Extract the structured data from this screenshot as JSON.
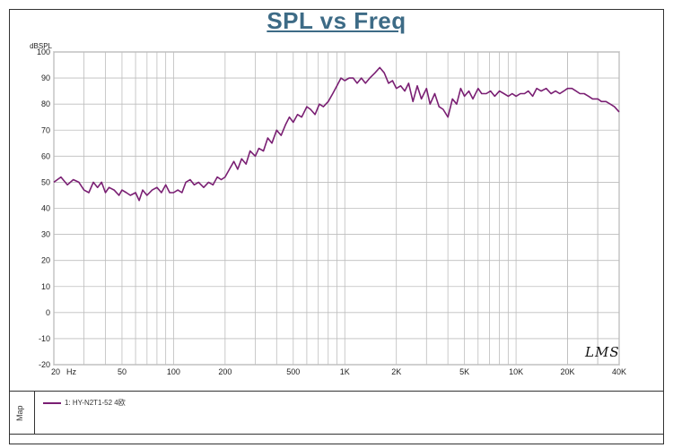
{
  "chart_data": {
    "type": "line",
    "title": "SPL vs Freq",
    "ylabel": "dBSPL",
    "xlabel": "",
    "xscale": "log",
    "xlim": [
      20,
      40000
    ],
    "ylim": [
      -20,
      100
    ],
    "grid": true,
    "y_ticks": [
      "100",
      "90",
      "80",
      "70",
      "60",
      "50",
      "40",
      "30",
      "20",
      "10",
      "0",
      "-10",
      "-20"
    ],
    "x_ticks": [
      {
        "v": 20,
        "label": "20"
      },
      {
        "v": 50,
        "label": "50"
      },
      {
        "v": 100,
        "label": "100"
      },
      {
        "v": 200,
        "label": "200"
      },
      {
        "v": 500,
        "label": "500"
      },
      {
        "v": 1000,
        "label": "1K"
      },
      {
        "v": 2000,
        "label": "2K"
      },
      {
        "v": 5000,
        "label": "5K"
      },
      {
        "v": 10000,
        "label": "10K"
      },
      {
        "v": 20000,
        "label": "20K"
      },
      {
        "v": 40000,
        "label": "40K"
      }
    ],
    "x_unit": "Hz",
    "series": [
      {
        "name": "1: HY-N2T1-52 4欧",
        "color": "#7a1f73",
        "x": [
          20,
          22,
          24,
          26,
          28,
          30,
          32,
          34,
          36,
          38,
          40,
          42,
          45,
          48,
          50,
          53,
          56,
          60,
          63,
          66,
          70,
          75,
          80,
          85,
          90,
          95,
          100,
          106,
          112,
          118,
          125,
          132,
          140,
          150,
          160,
          170,
          180,
          190,
          200,
          212,
          225,
          237,
          250,
          265,
          280,
          300,
          315,
          335,
          355,
          375,
          400,
          425,
          450,
          475,
          500,
          530,
          560,
          600,
          630,
          670,
          710,
          750,
          800,
          850,
          900,
          950,
          1000,
          1060,
          1120,
          1180,
          1250,
          1320,
          1400,
          1500,
          1600,
          1700,
          1800,
          1900,
          2000,
          2120,
          2240,
          2360,
          2500,
          2650,
          2800,
          3000,
          3150,
          3350,
          3550,
          3750,
          4000,
          4250,
          4500,
          4750,
          5000,
          5300,
          5600,
          6000,
          6300,
          6700,
          7100,
          7500,
          8000,
          8500,
          9000,
          9500,
          10000,
          10600,
          11200,
          11800,
          12500,
          13200,
          14000,
          15000,
          16000,
          17000,
          18000,
          19000,
          20000,
          21200,
          22400,
          23600,
          25000,
          26500,
          28000,
          30000,
          31500,
          33500,
          35500,
          37500,
          40000
        ],
        "y": [
          50,
          52,
          49,
          51,
          50,
          47,
          46,
          50,
          48,
          50,
          46,
          48,
          47,
          45,
          47,
          46,
          45,
          46,
          43,
          47,
          45,
          47,
          48,
          46,
          49,
          46,
          46,
          47,
          46,
          50,
          51,
          49,
          50,
          48,
          50,
          49,
          52,
          51,
          52,
          55,
          58,
          55,
          59,
          57,
          62,
          60,
          63,
          62,
          67,
          65,
          70,
          68,
          72,
          75,
          73,
          76,
          75,
          79,
          78,
          76,
          80,
          79,
          81,
          84,
          87,
          90,
          89,
          90,
          90,
          88,
          90,
          88,
          90,
          92,
          94,
          92,
          88,
          89,
          86,
          87,
          85,
          88,
          81,
          87,
          82,
          86,
          80,
          84,
          79,
          78,
          75,
          82,
          80,
          86,
          83,
          85,
          82,
          86,
          84,
          84,
          85,
          83,
          85,
          84,
          83,
          84,
          83,
          84,
          84,
          85,
          83,
          86,
          85,
          86,
          84,
          85,
          84,
          85,
          86,
          86,
          85,
          84,
          84,
          83,
          82,
          82,
          81,
          81,
          80,
          79,
          77
        ]
      }
    ]
  },
  "legend": {
    "map_label": "Map",
    "entry": "1: HY-N2T1-52 4欧"
  },
  "watermark": "LMS"
}
